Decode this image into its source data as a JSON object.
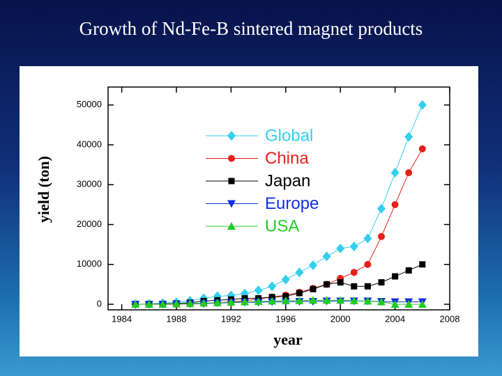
{
  "chart_data": {
    "type": "line",
    "title": "Growth of Nd-Fe-B sintered magnet products",
    "x_label": "year",
    "y_label": "yield (ton)",
    "x": [
      1985,
      1986,
      1987,
      1988,
      1989,
      1990,
      1991,
      1992,
      1993,
      1994,
      1995,
      1996,
      1997,
      1998,
      1999,
      2000,
      2001,
      2002,
      2003,
      2004,
      2005,
      2006
    ],
    "series": [
      {
        "name": "Global",
        "color": "#33d0ee",
        "marker": "diamond",
        "values": [
          0,
          100,
          300,
          500,
          900,
          1500,
          2000,
          2200,
          2700,
          3500,
          4500,
          6200,
          8000,
          9800,
          12000,
          14000,
          14500,
          16500,
          24000,
          33000,
          42000,
          50000
        ]
      },
      {
        "name": "China",
        "color": "#e8201a",
        "marker": "circle",
        "values": [
          0,
          0,
          0,
          0,
          100,
          200,
          400,
          600,
          900,
          1300,
          1800,
          2300,
          3000,
          4000,
          5000,
          6500,
          8000,
          10000,
          17000,
          25000,
          33000,
          39000
        ]
      },
      {
        "name": "Japan",
        "color": "#000000",
        "marker": "square",
        "values": [
          0,
          0,
          100,
          200,
          400,
          800,
          1000,
          1200,
          1500,
          1500,
          1800,
          2000,
          2800,
          3800,
          5000,
          5500,
          4500,
          4500,
          5500,
          7000,
          8500,
          10000
        ]
      },
      {
        "name": "Europe",
        "color": "#1030e0",
        "marker": "triangle-down",
        "values": [
          0,
          0,
          0,
          100,
          100,
          200,
          300,
          400,
          500,
          500,
          600,
          600,
          700,
          700,
          800,
          800,
          800,
          800,
          700,
          600,
          600,
          600
        ]
      },
      {
        "name": "USA",
        "color": "#22cc22",
        "marker": "triangle-up",
        "values": [
          0,
          0,
          0,
          100,
          200,
          300,
          400,
          500,
          600,
          700,
          800,
          900,
          900,
          1000,
          1000,
          1000,
          900,
          800,
          600,
          0,
          0,
          0
        ]
      }
    ],
    "xlim": [
      1983,
      2008
    ],
    "xticks": [
      1984,
      1988,
      1992,
      1996,
      2000,
      2004,
      2008
    ],
    "ylim": [
      -1400,
      54500
    ],
    "yticks": [
      0,
      10000,
      20000,
      30000,
      40000,
      50000
    ],
    "grid": false,
    "legend": "top-center"
  }
}
